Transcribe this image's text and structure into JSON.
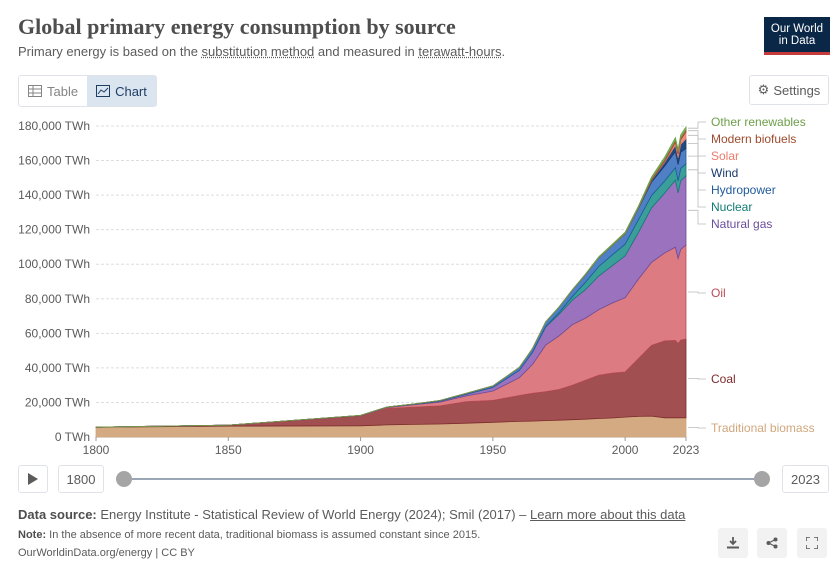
{
  "header": {
    "title": "Global primary energy consumption by source",
    "subtitle_pre": "Primary energy is based on the ",
    "subtitle_link": "substitution method",
    "subtitle_mid": " and measured in ",
    "subtitle_link2": "terawatt-hours",
    "subtitle_post": ".",
    "logo_line1": "Our World",
    "logo_line2": "in Data"
  },
  "tabs": [
    {
      "label": "Table",
      "icon": "table-icon",
      "active": false
    },
    {
      "label": "Chart",
      "icon": "chart-icon",
      "active": true
    }
  ],
  "settings_label": "Settings",
  "timeline": {
    "start": "1800",
    "end": "2023"
  },
  "footer": {
    "source_label": "Data source:",
    "source_text": " Energy Institute - Statistical Review of World Energy (2024); Smil (2017) – ",
    "source_link": "Learn more about this data",
    "note_label": "Note:",
    "note_text": " In the absence of more recent data, traditional biomass is assumed constant since 2015.",
    "credit": "OurWorldinData.org/energy | CC BY"
  },
  "chart_data": {
    "type": "area",
    "stacked": true,
    "title": "Global primary energy consumption by source",
    "ylim": [
      0,
      180000
    ],
    "y_ticks": [
      "0 TWh",
      "20,000 TWh",
      "40,000 TWh",
      "60,000 TWh",
      "80,000 TWh",
      "100,000 TWh",
      "120,000 TWh",
      "140,000 TWh",
      "160,000 TWh",
      "180,000 TWh"
    ],
    "y_tick_values": [
      0,
      20000,
      40000,
      60000,
      80000,
      100000,
      120000,
      140000,
      160000,
      180000
    ],
    "x_ticks": [
      "1800",
      "1850",
      "1900",
      "1950",
      "2000",
      "2023"
    ],
    "x_tick_values": [
      1800,
      1850,
      1900,
      1950,
      2000,
      2023
    ],
    "xlim": [
      1800,
      2023
    ],
    "grid": "horizontal dashed",
    "legend_placement": "right (end labels)",
    "x": [
      1800,
      1850,
      1900,
      1910,
      1920,
      1930,
      1940,
      1950,
      1960,
      1965,
      1970,
      1975,
      1980,
      1985,
      1990,
      1995,
      2000,
      2005,
      2010,
      2015,
      2019,
      2020,
      2021,
      2023
    ],
    "series": [
      {
        "name": "Traditional biomass",
        "color": "#d1a77c",
        "fill": "#d4aa82",
        "values": [
          5600,
          6300,
          6500,
          7000,
          7300,
          7500,
          8000,
          8500,
          9000,
          9200,
          9500,
          9700,
          10000,
          10300,
          10700,
          11000,
          11500,
          11900,
          12100,
          11100,
          11100,
          11100,
          11100,
          11100
        ]
      },
      {
        "name": "Coal",
        "color": "#7c2b2b",
        "fill": "#a24f52",
        "values": [
          100,
          600,
          5700,
          9500,
          10000,
          10500,
          12500,
          12700,
          15000,
          16100,
          16800,
          17800,
          20000,
          22500,
          25000,
          26000,
          26100,
          33500,
          41000,
          44500,
          44800,
          43000,
          45000,
          45600
        ]
      },
      {
        "name": "Oil",
        "color": "#b94c56",
        "fill": "#dc7b81",
        "values": [
          0,
          0,
          200,
          600,
          1400,
          2200,
          3300,
          5400,
          10300,
          16700,
          27000,
          31000,
          35000,
          36000,
          38000,
          40500,
          43000,
          46000,
          48000,
          51000,
          54000,
          49300,
          52400,
          54500
        ]
      },
      {
        "name": "Natural gas",
        "color": "#6b4d9c",
        "fill": "#9a72bd",
        "values": [
          0,
          0,
          70,
          150,
          200,
          600,
          1000,
          2100,
          4300,
          7000,
          10500,
          12500,
          14200,
          16500,
          19500,
          21500,
          24200,
          27000,
          31600,
          34700,
          38800,
          38000,
          39800,
          40000
        ]
      },
      {
        "name": "Nuclear",
        "color": "#117a74",
        "fill": "#3a9e99",
        "values": [
          0,
          0,
          0,
          0,
          0,
          0,
          0,
          0,
          5,
          70,
          220,
          1000,
          2000,
          4300,
          5500,
          6200,
          6800,
          7300,
          7200,
          6900,
          7300,
          6900,
          7100,
          6900
        ]
      },
      {
        "name": "Hydropower",
        "color": "#1f5a9c",
        "fill": "#4f7fc4",
        "values": [
          0,
          0,
          20,
          100,
          200,
          350,
          550,
          900,
          1600,
          2100,
          2700,
          3200,
          3800,
          4400,
          5000,
          5500,
          6000,
          6600,
          7700,
          8700,
          9300,
          9400,
          9400,
          9000
        ]
      },
      {
        "name": "Wind",
        "color": "#1a3a6b",
        "fill": "#224a82",
        "values": [
          0,
          0,
          0,
          0,
          0,
          0,
          0,
          0,
          0,
          0,
          0,
          0,
          0,
          0,
          10,
          20,
          80,
          260,
          900,
          2200,
          3500,
          3900,
          4600,
          5500
        ]
      },
      {
        "name": "Solar",
        "color": "#ea7a6b",
        "fill": "#ee8f7e",
        "values": [
          0,
          0,
          0,
          0,
          0,
          0,
          0,
          0,
          0,
          0,
          0,
          0,
          0,
          0,
          0,
          0,
          5,
          10,
          80,
          600,
          1800,
          2200,
          2700,
          4000
        ]
      },
      {
        "name": "Modern biofuels",
        "color": "#9c4b2e",
        "fill": "#b0603f",
        "values": [
          0,
          0,
          0,
          0,
          0,
          0,
          0,
          0,
          0,
          0,
          0,
          0,
          60,
          100,
          130,
          150,
          200,
          350,
          1000,
          1200,
          1300,
          1200,
          1300,
          1400
        ]
      },
      {
        "name": "Other renewables",
        "color": "#6d9f4a",
        "fill": "#8db86b",
        "values": [
          0,
          0,
          0,
          0,
          0,
          0,
          0,
          0,
          50,
          70,
          90,
          120,
          200,
          300,
          450,
          550,
          650,
          800,
          1000,
          1300,
          1400,
          1450,
          1500,
          1500
        ]
      }
    ],
    "label_offsets_note": ""
  }
}
